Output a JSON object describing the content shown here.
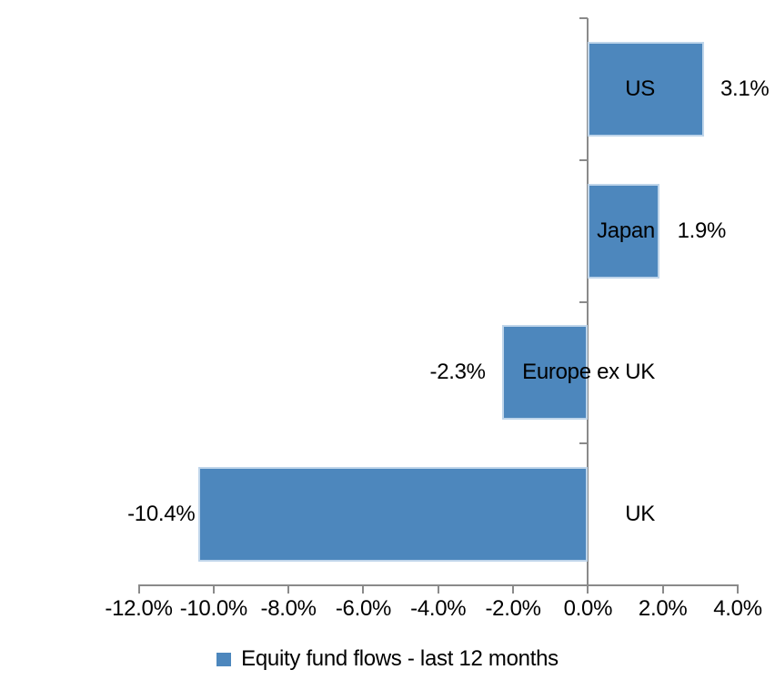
{
  "chart_data": {
    "type": "bar",
    "orientation": "horizontal",
    "series": [
      {
        "name": "Equity fund flows - last 12 months",
        "categories": [
          "US",
          "Japan",
          "Europe ex UK",
          "UK"
        ],
        "values": [
          3.1,
          1.9,
          -2.3,
          -10.4
        ],
        "data_labels": [
          "3.1%",
          "1.9%",
          "-2.3%",
          "-10.4%"
        ]
      }
    ],
    "x_axis": {
      "min": -12,
      "max": 4,
      "step": 2,
      "tick_values": [
        -12,
        -10,
        -8,
        -6,
        -4,
        -2,
        0,
        2,
        4
      ],
      "tick_labels": [
        "-12.0%",
        "-10.0%",
        "-8.0%",
        "-6.0%",
        "-4.0%",
        "-2.0%",
        "0.0%",
        "2.0%",
        "4.0%"
      ]
    },
    "grid": false,
    "legend": {
      "position": "bottom",
      "entries": [
        "Equity fund flows - last 12 months"
      ]
    },
    "colors": {
      "bar": "#4D87BD",
      "bar_border": "#BFD5EA",
      "axis": "#8A8A8A",
      "text": "#000000",
      "background": "#FFFFFF"
    }
  }
}
